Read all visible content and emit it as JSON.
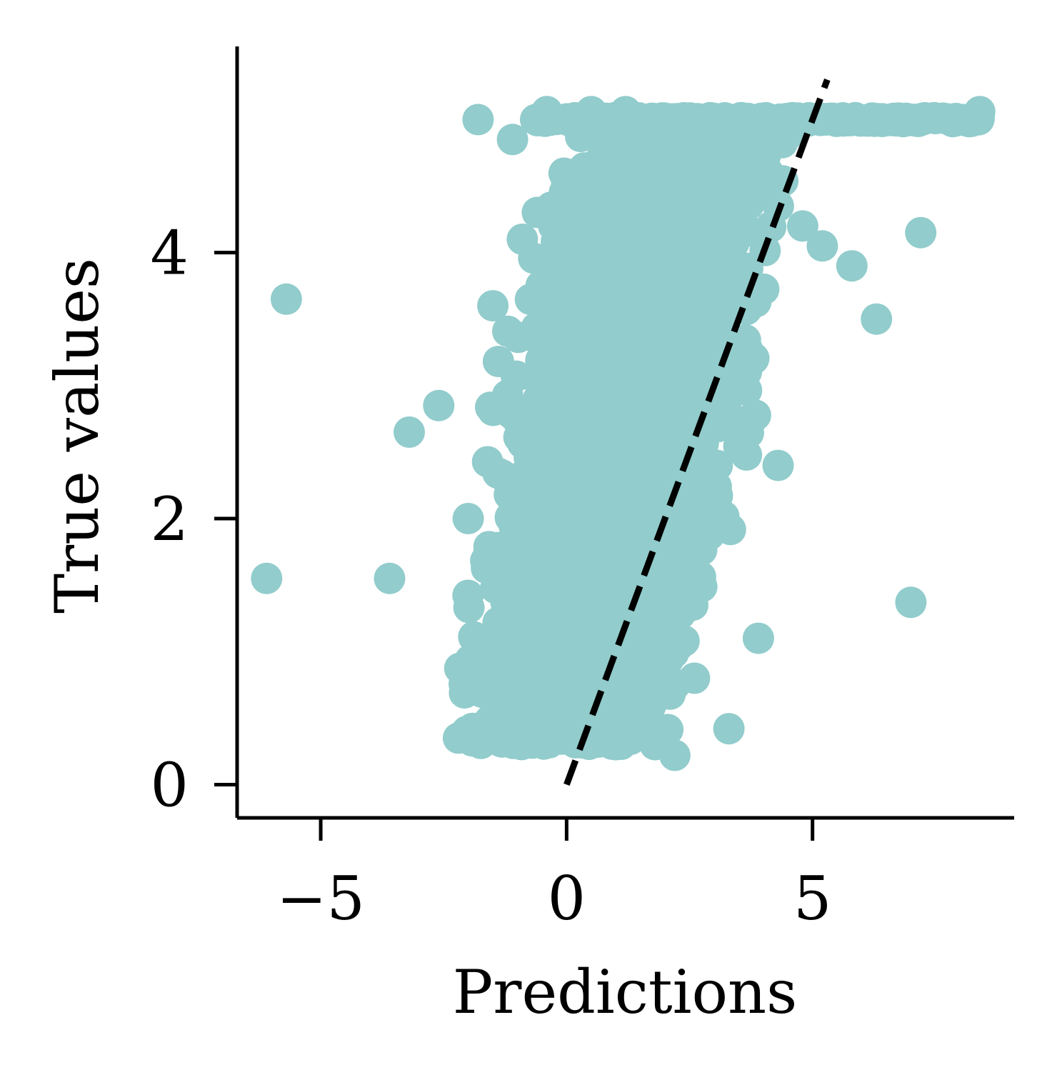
{
  "chart_data": {
    "type": "scatter",
    "xlabel": "Predictions",
    "ylabel": "True values",
    "xlim": [
      -6.7,
      9.1
    ],
    "ylim": [
      -0.25,
      5.55
    ],
    "x_ticks": [
      -5,
      0,
      5
    ],
    "x_tick_labels": [
      "−5",
      "0",
      "5"
    ],
    "y_ticks": [
      0,
      2,
      4
    ],
    "y_tick_labels": [
      "0",
      "2",
      "4"
    ],
    "grid": false,
    "legend": "none",
    "point_color": "#92cccc",
    "reference_line": {
      "style": "dashed",
      "color": "#000000",
      "x": [
        0,
        5.3
      ],
      "y": [
        0,
        5.3
      ]
    },
    "series": [
      {
        "cluster": {
          "x_min": -3.3,
          "x_max": 4.4,
          "y_min": 0.3,
          "y_max": 5.0
        },
        "cap_value": 5.0,
        "cap_x_range": [
          -0.7,
          8.4
        ],
        "x": [
          -6.1,
          -5.7,
          -3.6,
          -3.2,
          -2.6,
          -2.2,
          -1.8,
          1.8,
          2.2,
          3.3,
          4.8,
          5.2,
          5.8,
          6.3,
          7.0,
          7.2,
          8.4,
          -1.1,
          -0.9,
          -0.3,
          0.2,
          1.0,
          1.5,
          2.6,
          3.9,
          4.3,
          3.8,
          4.1,
          1.2,
          0.5,
          -0.4,
          -1.5,
          -2.0
        ],
        "y": [
          1.55,
          3.65,
          1.55,
          2.65,
          2.85,
          0.35,
          5.0,
          0.3,
          0.22,
          0.42,
          4.2,
          4.05,
          3.9,
          3.5,
          1.37,
          4.15,
          5.06,
          4.85,
          4.1,
          3.7,
          1.0,
          0.3,
          0.55,
          0.8,
          1.1,
          2.4,
          3.2,
          4.6,
          5.06,
          5.06,
          5.06,
          3.6,
          2.0
        ]
      }
    ]
  }
}
